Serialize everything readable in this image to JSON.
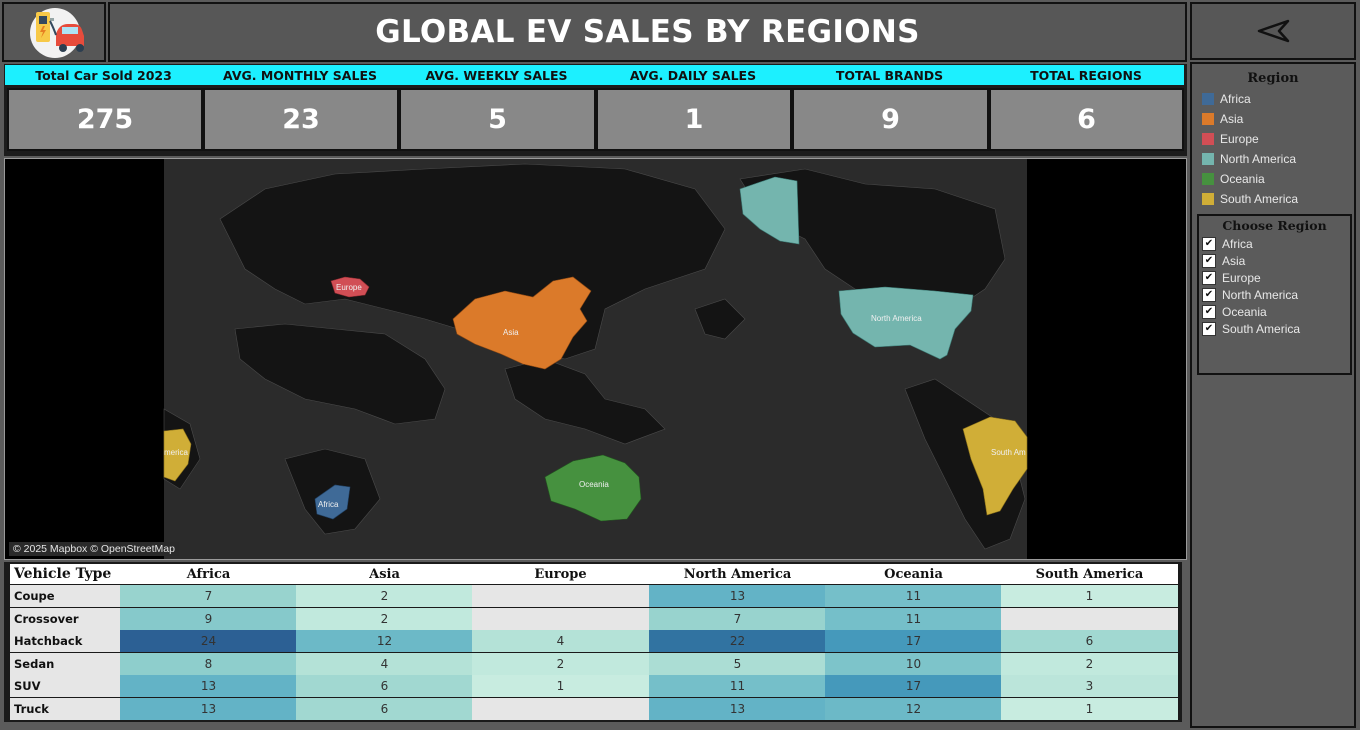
{
  "header": {
    "title": "GLOBAL EV SALES BY REGIONS",
    "logo_icon": "ev-charging-car-icon",
    "back_icon": "back-arrow-icon"
  },
  "kpis": [
    {
      "label": "Total Car Sold 2023",
      "value": "275"
    },
    {
      "label": "AVG. MONTHLY SALES",
      "value": "23"
    },
    {
      "label": "AVG. WEEKLY SALES",
      "value": "5"
    },
    {
      "label": "AVG. DAILY SALES",
      "value": "1"
    },
    {
      "label": "TOTAL BRANDS",
      "value": "9"
    },
    {
      "label": "TOTAL REGIONS",
      "value": "6"
    }
  ],
  "map": {
    "attribution": "© 2025 Mapbox © OpenStreetMap",
    "labels": {
      "europe": "Europe",
      "asia": "Asia",
      "north_america": "North America",
      "africa": "Africa",
      "oceania": "Oceania",
      "south_america_left": "merica",
      "south_america_right": "South Am"
    }
  },
  "colors": {
    "Africa": "#3f6a97",
    "Asia": "#db7a2a",
    "Europe": "#d14e55",
    "North America": "#74b5ae",
    "Oceania": "#46913f",
    "South America": "#d0ae37",
    "kpi_header": "#1cf0ff"
  },
  "legend": {
    "title": "Region",
    "items": [
      "Africa",
      "Asia",
      "Europe",
      "North America",
      "Oceania",
      "South America"
    ]
  },
  "filter": {
    "title": "Choose Region",
    "items": [
      "Africa",
      "Asia",
      "Europe",
      "North America",
      "Oceania",
      "South America"
    ]
  },
  "table": {
    "row_header": "Vehicle Type",
    "columns": [
      "Africa",
      "Asia",
      "Europe",
      "North America",
      "Oceania",
      "South America"
    ],
    "rows": [
      {
        "type": "Coupe",
        "values": [
          7,
          2,
          null,
          13,
          11,
          1
        ]
      },
      {
        "type": "Crossover",
        "values": [
          9,
          2,
          null,
          7,
          11,
          null
        ]
      },
      {
        "type": "Hatchback",
        "values": [
          24,
          12,
          4,
          22,
          17,
          6
        ]
      },
      {
        "type": "Sedan",
        "values": [
          8,
          4,
          2,
          5,
          10,
          2
        ]
      },
      {
        "type": "SUV",
        "values": [
          13,
          6,
          1,
          11,
          17,
          3
        ]
      },
      {
        "type": "Truck",
        "values": [
          13,
          6,
          null,
          13,
          12,
          1
        ]
      }
    ]
  }
}
